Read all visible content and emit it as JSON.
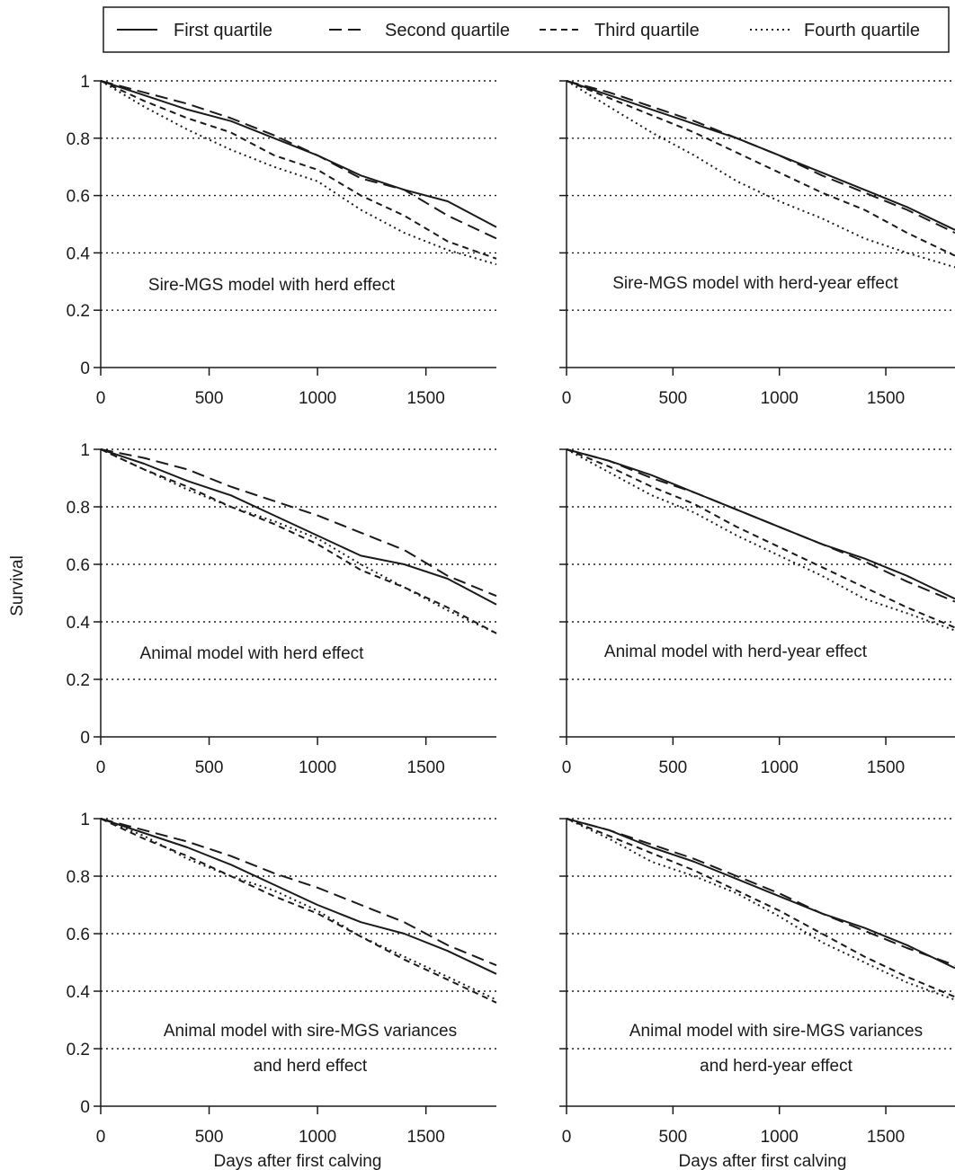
{
  "legend": {
    "placement": "top",
    "entries": [
      {
        "label": "First quartile",
        "style": "solid"
      },
      {
        "label": "Second quartile",
        "style": "long-dash"
      },
      {
        "label": "Third quartile",
        "style": "short-dash"
      },
      {
        "label": "Fourth quartile",
        "style": "dotted"
      }
    ]
  },
  "ylabel": "Survival",
  "xlabel": "Days after first calving",
  "chart_data": [
    {
      "type": "line",
      "panel": "top-left",
      "annotation": [
        "Sire-MGS model with herd effect"
      ],
      "x": [
        0,
        200,
        400,
        600,
        800,
        1000,
        1200,
        1400,
        1600,
        1825
      ],
      "xlim": [
        0,
        1825
      ],
      "ylim": [
        0,
        1
      ],
      "xticks": [
        "0",
        "500",
        "1000",
        "1500"
      ],
      "yticks": [
        "0",
        "0.2",
        "0.4",
        "0.6",
        "0.8",
        "1"
      ],
      "ygrid": [
        0.2,
        0.4,
        0.6,
        0.8,
        1.0
      ],
      "series": [
        {
          "name": "First quartile",
          "values": [
            1.0,
            0.95,
            0.9,
            0.86,
            0.8,
            0.74,
            0.67,
            0.62,
            0.58,
            0.49
          ]
        },
        {
          "name": "Second quartile",
          "values": [
            1.0,
            0.96,
            0.92,
            0.87,
            0.81,
            0.74,
            0.66,
            0.62,
            0.53,
            0.45
          ]
        },
        {
          "name": "Third quartile",
          "values": [
            1.0,
            0.93,
            0.87,
            0.82,
            0.74,
            0.69,
            0.6,
            0.53,
            0.44,
            0.38
          ]
        },
        {
          "name": "Fourth quartile",
          "values": [
            1.0,
            0.91,
            0.83,
            0.76,
            0.7,
            0.65,
            0.55,
            0.47,
            0.41,
            0.36
          ]
        }
      ]
    },
    {
      "type": "line",
      "panel": "top-right",
      "annotation": [
        "Sire-MGS model with herd-year effect"
      ],
      "x": [
        0,
        200,
        400,
        600,
        800,
        1000,
        1200,
        1400,
        1600,
        1825
      ],
      "xlim": [
        0,
        1825
      ],
      "ylim": [
        0,
        1
      ],
      "xticks": [
        "0",
        "500",
        "1000",
        "1500"
      ],
      "yticks": [
        "0",
        "0.2",
        "0.4",
        "0.6",
        "0.8",
        "1"
      ],
      "ygrid": [
        0.2,
        0.4,
        0.6,
        0.8,
        1.0
      ],
      "series": [
        {
          "name": "First quartile",
          "values": [
            1.0,
            0.95,
            0.9,
            0.85,
            0.8,
            0.74,
            0.68,
            0.62,
            0.56,
            0.48
          ]
        },
        {
          "name": "Second quartile",
          "values": [
            1.0,
            0.96,
            0.91,
            0.86,
            0.8,
            0.74,
            0.67,
            0.61,
            0.55,
            0.47
          ]
        },
        {
          "name": "Third quartile",
          "values": [
            1.0,
            0.94,
            0.88,
            0.82,
            0.75,
            0.68,
            0.61,
            0.55,
            0.47,
            0.39
          ]
        },
        {
          "name": "Fourth quartile",
          "values": [
            1.0,
            0.91,
            0.82,
            0.74,
            0.65,
            0.58,
            0.52,
            0.45,
            0.4,
            0.35
          ]
        }
      ]
    },
    {
      "type": "line",
      "panel": "middle-left",
      "annotation": [
        "Animal model with herd effect"
      ],
      "x": [
        0,
        200,
        400,
        600,
        800,
        1000,
        1200,
        1400,
        1600,
        1825
      ],
      "xlim": [
        0,
        1825
      ],
      "ylim": [
        0,
        1
      ],
      "xticks": [
        "0",
        "500",
        "1000",
        "1500"
      ],
      "yticks": [
        "0",
        "0.2",
        "0.4",
        "0.6",
        "0.8",
        "1"
      ],
      "ygrid": [
        0.2,
        0.4,
        0.6,
        0.8,
        1.0
      ],
      "series": [
        {
          "name": "First quartile",
          "values": [
            1.0,
            0.95,
            0.89,
            0.84,
            0.77,
            0.7,
            0.63,
            0.6,
            0.55,
            0.46
          ]
        },
        {
          "name": "Second quartile",
          "values": [
            1.0,
            0.97,
            0.93,
            0.87,
            0.82,
            0.77,
            0.71,
            0.65,
            0.56,
            0.49
          ]
        },
        {
          "name": "Third quartile",
          "values": [
            1.0,
            0.93,
            0.87,
            0.8,
            0.74,
            0.67,
            0.58,
            0.52,
            0.45,
            0.36
          ]
        },
        {
          "name": "Fourth quartile",
          "values": [
            1.0,
            0.93,
            0.86,
            0.8,
            0.75,
            0.69,
            0.6,
            0.52,
            0.44,
            0.36
          ]
        }
      ]
    },
    {
      "type": "line",
      "panel": "middle-right",
      "annotation": [
        "Animal model with herd-year effect"
      ],
      "x": [
        0,
        200,
        400,
        600,
        800,
        1000,
        1200,
        1400,
        1600,
        1825
      ],
      "xlim": [
        0,
        1825
      ],
      "ylim": [
        0,
        1
      ],
      "xticks": [
        "0",
        "500",
        "1000",
        "1500"
      ],
      "yticks": [
        "0",
        "0.2",
        "0.4",
        "0.6",
        "0.8",
        "1"
      ],
      "ygrid": [
        0.2,
        0.4,
        0.6,
        0.8,
        1.0
      ],
      "series": [
        {
          "name": "First quartile",
          "values": [
            1.0,
            0.96,
            0.91,
            0.85,
            0.79,
            0.73,
            0.67,
            0.62,
            0.56,
            0.48
          ]
        },
        {
          "name": "Second quartile",
          "values": [
            1.0,
            0.96,
            0.9,
            0.85,
            0.79,
            0.73,
            0.67,
            0.61,
            0.54,
            0.47
          ]
        },
        {
          "name": "Third quartile",
          "values": [
            1.0,
            0.94,
            0.87,
            0.81,
            0.73,
            0.66,
            0.59,
            0.52,
            0.45,
            0.38
          ]
        },
        {
          "name": "Fourth quartile",
          "values": [
            1.0,
            0.92,
            0.84,
            0.78,
            0.7,
            0.63,
            0.56,
            0.48,
            0.43,
            0.37
          ]
        }
      ]
    },
    {
      "type": "line",
      "panel": "bottom-left",
      "annotation": [
        "Animal model with sire-MGS variances",
        "and herd effect"
      ],
      "x": [
        0,
        200,
        400,
        600,
        800,
        1000,
        1200,
        1400,
        1600,
        1825
      ],
      "xlim": [
        0,
        1825
      ],
      "ylim": [
        0,
        1
      ],
      "xticks": [
        "0",
        "500",
        "1000",
        "1500"
      ],
      "yticks": [
        "0",
        "0.2",
        "0.4",
        "0.6",
        "0.8",
        "1"
      ],
      "ygrid": [
        0.2,
        0.4,
        0.6,
        0.8,
        1.0
      ],
      "series": [
        {
          "name": "First quartile",
          "values": [
            1.0,
            0.95,
            0.9,
            0.84,
            0.77,
            0.7,
            0.64,
            0.6,
            0.54,
            0.46
          ]
        },
        {
          "name": "Second quartile",
          "values": [
            1.0,
            0.96,
            0.92,
            0.87,
            0.81,
            0.76,
            0.7,
            0.64,
            0.56,
            0.49
          ]
        },
        {
          "name": "Third quartile",
          "values": [
            1.0,
            0.93,
            0.87,
            0.8,
            0.73,
            0.67,
            0.59,
            0.51,
            0.44,
            0.36
          ]
        },
        {
          "name": "Fourth quartile",
          "values": [
            1.0,
            0.94,
            0.86,
            0.8,
            0.75,
            0.68,
            0.59,
            0.52,
            0.45,
            0.37
          ]
        }
      ]
    },
    {
      "type": "line",
      "panel": "bottom-right",
      "annotation": [
        "Animal model with sire-MGS variances",
        "and herd-year effect"
      ],
      "x": [
        0,
        200,
        400,
        600,
        800,
        1000,
        1200,
        1400,
        1600,
        1825
      ],
      "xlim": [
        0,
        1825
      ],
      "ylim": [
        0,
        1
      ],
      "xticks": [
        "0",
        "500",
        "1000",
        "1500"
      ],
      "yticks": [
        "0",
        "0.2",
        "0.4",
        "0.6",
        "0.8",
        "1"
      ],
      "ygrid": [
        0.2,
        0.4,
        0.6,
        0.8,
        1.0
      ],
      "series": [
        {
          "name": "First quartile",
          "values": [
            1.0,
            0.96,
            0.9,
            0.85,
            0.79,
            0.73,
            0.67,
            0.62,
            0.56,
            0.48
          ]
        },
        {
          "name": "Second quartile",
          "values": [
            1.0,
            0.96,
            0.91,
            0.86,
            0.8,
            0.74,
            0.67,
            0.61,
            0.55,
            0.49
          ]
        },
        {
          "name": "Third quartile",
          "values": [
            1.0,
            0.94,
            0.88,
            0.82,
            0.75,
            0.68,
            0.6,
            0.52,
            0.45,
            0.38
          ]
        },
        {
          "name": "Fourth quartile",
          "values": [
            1.0,
            0.93,
            0.85,
            0.8,
            0.74,
            0.66,
            0.57,
            0.5,
            0.43,
            0.37
          ]
        }
      ]
    }
  ]
}
